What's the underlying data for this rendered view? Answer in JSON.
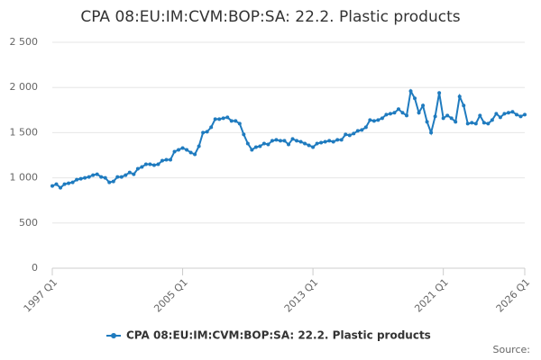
{
  "chart_data": {
    "type": "line",
    "title": "CPA 08:EU:IM:CVM:BOP:SA: 22.2. Plastic products",
    "source": "Source:",
    "categories": [
      "1997 Q1",
      null,
      null,
      null,
      null,
      null,
      null,
      null,
      null,
      null,
      null,
      null,
      null,
      null,
      null,
      null,
      null,
      null,
      null,
      null,
      null,
      null,
      null,
      null,
      null,
      null,
      null,
      null,
      null,
      null,
      null,
      null,
      "2005 Q1",
      null,
      null,
      null,
      null,
      null,
      null,
      null,
      null,
      null,
      null,
      null,
      null,
      null,
      null,
      null,
      null,
      null,
      null,
      null,
      null,
      null,
      null,
      null,
      null,
      null,
      null,
      null,
      null,
      null,
      null,
      null,
      "2013 Q1",
      null,
      null,
      null,
      null,
      null,
      null,
      null,
      null,
      null,
      null,
      null,
      null,
      null,
      null,
      null,
      null,
      null,
      null,
      null,
      null,
      null,
      null,
      null,
      null,
      null,
      null,
      null,
      null,
      null,
      null,
      null,
      "2021 Q1",
      null,
      null,
      null,
      null,
      null,
      null,
      null,
      null,
      null,
      null,
      null,
      null,
      null,
      null,
      null,
      null,
      null,
      null,
      null,
      "2026 Q1"
    ],
    "series": [
      {
        "name": "CPA 08:EU:IM:CVM:BOP:SA: 22.2. Plastic products",
        "color": "#1f7bbf",
        "values": [
          910,
          930,
          890,
          930,
          940,
          950,
          980,
          990,
          1000,
          1010,
          1030,
          1040,
          1010,
          1000,
          950,
          960,
          1010,
          1010,
          1030,
          1060,
          1040,
          1100,
          1120,
          1150,
          1150,
          1140,
          1150,
          1190,
          1200,
          1200,
          1290,
          1310,
          1330,
          1310,
          1280,
          1260,
          1350,
          1500,
          1510,
          1560,
          1650,
          1650,
          1660,
          1670,
          1630,
          1630,
          1600,
          1480,
          1380,
          1310,
          1340,
          1350,
          1380,
          1370,
          1410,
          1420,
          1410,
          1410,
          1370,
          1430,
          1410,
          1400,
          1380,
          1360,
          1340,
          1380,
          1390,
          1400,
          1410,
          1400,
          1420,
          1420,
          1480,
          1470,
          1490,
          1520,
          1530,
          1560,
          1640,
          1630,
          1640,
          1660,
          1700,
          1710,
          1720,
          1760,
          1720,
          1690,
          1960,
          1880,
          1720,
          1800,
          1620,
          1500,
          1680,
          1940,
          1660,
          1690,
          1660,
          1620,
          1900,
          1800,
          1600,
          1610,
          1600,
          1690,
          1610,
          1600,
          1640,
          1710,
          1670,
          1710,
          1720,
          1730,
          1700,
          1680,
          1700
        ]
      }
    ],
    "ylim": [
      0,
      2500
    ],
    "yticks": [
      0,
      500,
      {
        "value": 1000,
        "label": "1 000"
      },
      {
        "value": 1500,
        "label": "1 500"
      },
      {
        "value": 2000,
        "label": "2 000"
      },
      {
        "value": 2500,
        "label": "2 500"
      }
    ],
    "grid": true
  }
}
